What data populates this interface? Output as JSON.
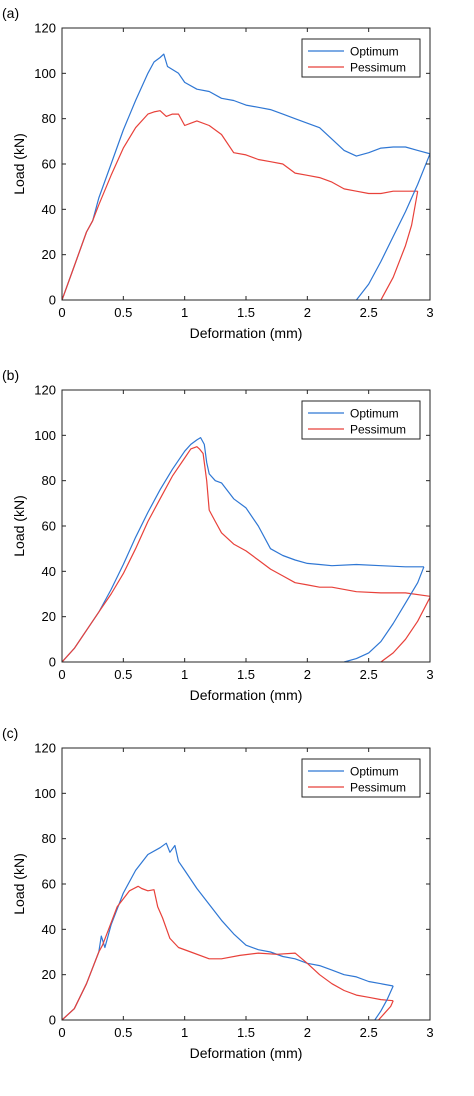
{
  "chart_data": [
    {
      "panel_label": "(a)",
      "type": "line",
      "xlabel": "Deformation (mm)",
      "ylabel": "Load (kN)",
      "xlim": [
        0,
        3
      ],
      "ylim": [
        0,
        120
      ],
      "xticks": [
        0,
        0.5,
        1,
        1.5,
        2,
        2.5,
        3
      ],
      "yticks": [
        0,
        20,
        40,
        60,
        80,
        100,
        120
      ],
      "legend": "top-right",
      "grid": false,
      "series": [
        {
          "name": "Optimum",
          "color": "#2f77d4",
          "points": [
            [
              0,
              0
            ],
            [
              0.1,
              15
            ],
            [
              0.2,
              30
            ],
            [
              0.25,
              35
            ],
            [
              0.3,
              45
            ],
            [
              0.4,
              60
            ],
            [
              0.5,
              75
            ],
            [
              0.6,
              88
            ],
            [
              0.7,
              100
            ],
            [
              0.75,
              105
            ],
            [
              0.8,
              107
            ],
            [
              0.83,
              108.5
            ],
            [
              0.86,
              103
            ],
            [
              0.95,
              100
            ],
            [
              1.0,
              96
            ],
            [
              1.1,
              93
            ],
            [
              1.2,
              92
            ],
            [
              1.3,
              89
            ],
            [
              1.4,
              88
            ],
            [
              1.5,
              86
            ],
            [
              1.6,
              85
            ],
            [
              1.7,
              84
            ],
            [
              1.8,
              82
            ],
            [
              1.9,
              80
            ],
            [
              2.0,
              78
            ],
            [
              2.1,
              76
            ],
            [
              2.2,
              71
            ],
            [
              2.3,
              66
            ],
            [
              2.4,
              63.5
            ],
            [
              2.5,
              65
            ],
            [
              2.6,
              67
            ],
            [
              2.7,
              67.5
            ],
            [
              2.8,
              67.5
            ],
            [
              2.9,
              66
            ],
            [
              3.0,
              64.5
            ]
          ]
        },
        {
          "name": "Pessimum",
          "color": "#e8413a",
          "points": [
            [
              0,
              0
            ],
            [
              0.1,
              15
            ],
            [
              0.2,
              30
            ],
            [
              0.25,
              35
            ],
            [
              0.3,
              42
            ],
            [
              0.4,
              55
            ],
            [
              0.5,
              67
            ],
            [
              0.6,
              76
            ],
            [
              0.7,
              82
            ],
            [
              0.75,
              83
            ],
            [
              0.8,
              83.5
            ],
            [
              0.85,
              81
            ],
            [
              0.9,
              82
            ],
            [
              0.95,
              82
            ],
            [
              1.0,
              77
            ],
            [
              1.05,
              78
            ],
            [
              1.1,
              79
            ],
            [
              1.2,
              77
            ],
            [
              1.3,
              73
            ],
            [
              1.4,
              65
            ],
            [
              1.5,
              64
            ],
            [
              1.6,
              62
            ],
            [
              1.7,
              61
            ],
            [
              1.8,
              60
            ],
            [
              1.9,
              56
            ],
            [
              2.0,
              55
            ],
            [
              2.1,
              54
            ],
            [
              2.2,
              52
            ],
            [
              2.3,
              49
            ],
            [
              2.4,
              48
            ],
            [
              2.5,
              47
            ],
            [
              2.6,
              47
            ],
            [
              2.7,
              48
            ],
            [
              2.8,
              48
            ],
            [
              2.9,
              48
            ]
          ]
        },
        {
          "name": "",
          "color": "#2f77d4",
          "points": [
            [
              2.4,
              0
            ],
            [
              2.5,
              7
            ],
            [
              2.6,
              17
            ],
            [
              2.7,
              28
            ],
            [
              2.8,
              39
            ],
            [
              2.9,
              51
            ],
            [
              3.0,
              64.5
            ]
          ]
        },
        {
          "name": "",
          "color": "#e8413a",
          "points": [
            [
              2.6,
              0
            ],
            [
              2.7,
              10
            ],
            [
              2.8,
              24
            ],
            [
              2.85,
              33
            ],
            [
              2.9,
              48
            ]
          ]
        }
      ]
    },
    {
      "panel_label": "(b)",
      "type": "line",
      "xlabel": "Deformation (mm)",
      "ylabel": "Load (kN)",
      "xlim": [
        0,
        3
      ],
      "ylim": [
        0,
        120
      ],
      "xticks": [
        0,
        0.5,
        1,
        1.5,
        2,
        2.5,
        3
      ],
      "yticks": [
        0,
        20,
        40,
        60,
        80,
        100,
        120
      ],
      "legend": "top-right",
      "grid": false,
      "series": [
        {
          "name": "Optimum",
          "color": "#2f77d4",
          "points": [
            [
              0,
              0
            ],
            [
              0.1,
              6
            ],
            [
              0.2,
              14
            ],
            [
              0.3,
              22
            ],
            [
              0.4,
              32
            ],
            [
              0.5,
              43
            ],
            [
              0.6,
              55
            ],
            [
              0.7,
              66
            ],
            [
              0.8,
              76
            ],
            [
              0.9,
              85
            ],
            [
              1.0,
              93
            ],
            [
              1.05,
              96
            ],
            [
              1.1,
              98
            ],
            [
              1.13,
              99
            ],
            [
              1.16,
              96
            ],
            [
              1.18,
              88
            ],
            [
              1.2,
              83
            ],
            [
              1.25,
              80
            ],
            [
              1.3,
              79
            ],
            [
              1.4,
              72
            ],
            [
              1.5,
              68
            ],
            [
              1.6,
              60
            ],
            [
              1.7,
              50
            ],
            [
              1.8,
              47
            ],
            [
              1.9,
              45
            ],
            [
              2.0,
              43.5
            ],
            [
              2.1,
              43
            ],
            [
              2.2,
              42.5
            ],
            [
              2.4,
              43
            ],
            [
              2.6,
              42.5
            ],
            [
              2.8,
              42
            ],
            [
              2.95,
              42
            ]
          ]
        },
        {
          "name": "Pessimum",
          "color": "#e8413a",
          "points": [
            [
              0,
              0
            ],
            [
              0.1,
              6
            ],
            [
              0.2,
              14
            ],
            [
              0.3,
              22
            ],
            [
              0.4,
              30
            ],
            [
              0.5,
              39
            ],
            [
              0.6,
              50
            ],
            [
              0.7,
              62
            ],
            [
              0.8,
              72
            ],
            [
              0.9,
              82
            ],
            [
              1.0,
              90
            ],
            [
              1.05,
              94
            ],
            [
              1.1,
              95
            ],
            [
              1.12,
              94
            ],
            [
              1.15,
              92
            ],
            [
              1.18,
              80
            ],
            [
              1.2,
              67
            ],
            [
              1.25,
              62
            ],
            [
              1.3,
              57
            ],
            [
              1.4,
              52
            ],
            [
              1.5,
              49
            ],
            [
              1.6,
              45
            ],
            [
              1.7,
              41
            ],
            [
              1.8,
              38
            ],
            [
              1.9,
              35
            ],
            [
              2.0,
              34
            ],
            [
              2.1,
              33
            ],
            [
              2.2,
              33
            ],
            [
              2.4,
              31
            ],
            [
              2.6,
              30.5
            ],
            [
              2.8,
              30.5
            ],
            [
              3.0,
              29
            ]
          ]
        },
        {
          "name": "",
          "color": "#2f77d4",
          "points": [
            [
              2.3,
              0
            ],
            [
              2.4,
              1.5
            ],
            [
              2.5,
              4
            ],
            [
              2.6,
              9
            ],
            [
              2.7,
              17
            ],
            [
              2.8,
              26
            ],
            [
              2.9,
              35
            ],
            [
              2.95,
              42
            ]
          ]
        },
        {
          "name": "",
          "color": "#e8413a",
          "points": [
            [
              2.6,
              0
            ],
            [
              2.7,
              4
            ],
            [
              2.8,
              10
            ],
            [
              2.9,
              18
            ],
            [
              3.0,
              28.5
            ]
          ]
        }
      ]
    },
    {
      "panel_label": "(c)",
      "type": "line",
      "xlabel": "Deformation (mm)",
      "ylabel": "Load (kN)",
      "xlim": [
        0,
        3
      ],
      "ylim": [
        0,
        120
      ],
      "xticks": [
        0,
        0.5,
        1,
        1.5,
        2,
        2.5,
        3
      ],
      "yticks": [
        0,
        20,
        40,
        60,
        80,
        100,
        120
      ],
      "legend": "top-right",
      "grid": false,
      "series": [
        {
          "name": "Optimum",
          "color": "#2f77d4",
          "points": [
            [
              0,
              0
            ],
            [
              0.1,
              5
            ],
            [
              0.2,
              16
            ],
            [
              0.3,
              30
            ],
            [
              0.32,
              37
            ],
            [
              0.35,
              32
            ],
            [
              0.4,
              42
            ],
            [
              0.5,
              56
            ],
            [
              0.6,
              66
            ],
            [
              0.7,
              73
            ],
            [
              0.8,
              76
            ],
            [
              0.85,
              78
            ],
            [
              0.88,
              74
            ],
            [
              0.92,
              77
            ],
            [
              0.95,
              70
            ],
            [
              1.0,
              66
            ],
            [
              1.1,
              58
            ],
            [
              1.2,
              51
            ],
            [
              1.3,
              44
            ],
            [
              1.4,
              38
            ],
            [
              1.5,
              33
            ],
            [
              1.6,
              31
            ],
            [
              1.7,
              30
            ],
            [
              1.8,
              28
            ],
            [
              1.9,
              27
            ],
            [
              2.0,
              25
            ],
            [
              2.1,
              24
            ],
            [
              2.2,
              22
            ],
            [
              2.3,
              20
            ],
            [
              2.4,
              19
            ],
            [
              2.5,
              17
            ],
            [
              2.6,
              16
            ],
            [
              2.7,
              15
            ]
          ]
        },
        {
          "name": "Pessimum",
          "color": "#e8413a",
          "points": [
            [
              0,
              0
            ],
            [
              0.1,
              5
            ],
            [
              0.2,
              16
            ],
            [
              0.3,
              30
            ],
            [
              0.33,
              33
            ],
            [
              0.38,
              40
            ],
            [
              0.45,
              50
            ],
            [
              0.55,
              57
            ],
            [
              0.62,
              59
            ],
            [
              0.65,
              58
            ],
            [
              0.7,
              57
            ],
            [
              0.75,
              57.5
            ],
            [
              0.78,
              50
            ],
            [
              0.82,
              45
            ],
            [
              0.88,
              36
            ],
            [
              0.95,
              32
            ],
            [
              1.05,
              30
            ],
            [
              1.2,
              27
            ],
            [
              1.3,
              27
            ],
            [
              1.45,
              28.5
            ],
            [
              1.6,
              29.5
            ],
            [
              1.75,
              29
            ],
            [
              1.9,
              29.5
            ],
            [
              2.0,
              25
            ],
            [
              2.1,
              20
            ],
            [
              2.2,
              16
            ],
            [
              2.3,
              13
            ],
            [
              2.4,
              11
            ],
            [
              2.5,
              10
            ],
            [
              2.6,
              9
            ],
            [
              2.7,
              8.5
            ]
          ]
        },
        {
          "name": "",
          "color": "#2f77d4",
          "points": [
            [
              2.55,
              0
            ],
            [
              2.6,
              4
            ],
            [
              2.65,
              9
            ],
            [
              2.7,
              15
            ]
          ]
        },
        {
          "name": "",
          "color": "#e8413a",
          "points": [
            [
              2.58,
              0
            ],
            [
              2.63,
              3
            ],
            [
              2.68,
              6
            ],
            [
              2.7,
              8.5
            ]
          ]
        }
      ]
    }
  ]
}
